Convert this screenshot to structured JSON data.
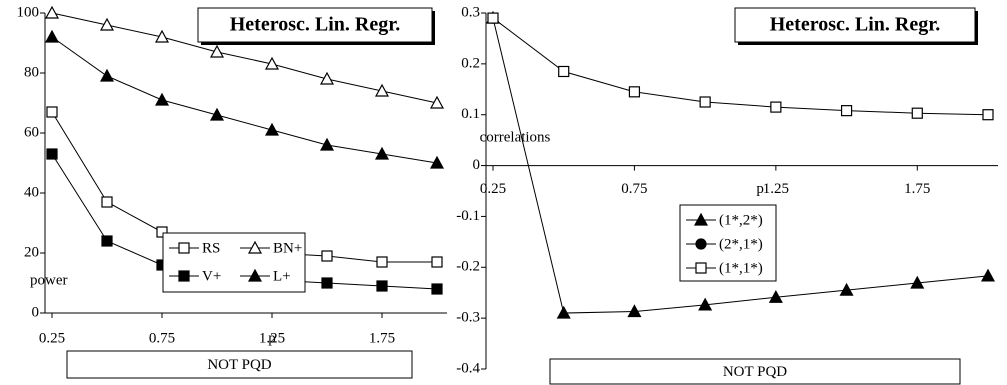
{
  "chart_data": [
    {
      "type": "line",
      "title": "Heterosc. Lin. Regr.",
      "ylabel": "power",
      "xlabel": "p",
      "note": "NOT PQD",
      "x": [
        0.25,
        0.5,
        0.75,
        1.0,
        1.25,
        1.5,
        1.75,
        2.0
      ],
      "xlim": [
        0.25,
        2.0
      ],
      "xticks": [
        0.25,
        0.75,
        1.25,
        1.75
      ],
      "ylim": [
        0,
        100
      ],
      "yticks": [
        0,
        20,
        40,
        60,
        80,
        100
      ],
      "series": [
        {
          "name": "RS",
          "color": "#000000",
          "marker": "square-open",
          "values": [
            67,
            37,
            27,
            23,
            20,
            19,
            17,
            17
          ]
        },
        {
          "name": "BN+",
          "color": "#000000",
          "marker": "triangle-open",
          "values": [
            100,
            96,
            92,
            87,
            83,
            78,
            74,
            70
          ]
        },
        {
          "name": "V+",
          "color": "#000000",
          "marker": "square",
          "values": [
            53,
            24,
            16,
            13,
            11,
            10,
            9,
            8
          ]
        },
        {
          "name": "L+",
          "color": "#000000",
          "marker": "triangle",
          "values": [
            92,
            79,
            71,
            66,
            61,
            56,
            53,
            50
          ]
        }
      ]
    },
    {
      "type": "line",
      "title": "Heterosc. Lin. Regr.",
      "ylabel": "correlations",
      "xlabel": "p",
      "note": "NOT PQD",
      "x": [
        0.25,
        0.5,
        0.75,
        1.0,
        1.25,
        1.5,
        1.75,
        2.0
      ],
      "xlim": [
        0.25,
        2.0
      ],
      "xticks": [
        0.25,
        0.75,
        1.25,
        1.75
      ],
      "ylim": [
        -0.4,
        0.3
      ],
      "yticks": [
        -0.4,
        -0.3,
        -0.2,
        -0.1,
        0,
        0.1,
        0.2,
        0.3
      ],
      "series": [
        {
          "name": "(1*,2*)",
          "color": "#000000",
          "marker": "triangle",
          "values": [
            0.29,
            -0.29,
            -0.287,
            -0.274,
            -0.259,
            -0.245,
            -0.231,
            -0.217
          ]
        },
        {
          "name": "(2*,1*)",
          "color": "#000000",
          "marker": "circle",
          "values": [
            0.29,
            null,
            null,
            null,
            null,
            null,
            null,
            null
          ]
        },
        {
          "name": "(1*,1*)",
          "color": "#000000",
          "marker": "square-open",
          "values": [
            0.29,
            0.185,
            0.145,
            0.125,
            0.115,
            0.108,
            0.103,
            0.1
          ]
        }
      ]
    }
  ]
}
